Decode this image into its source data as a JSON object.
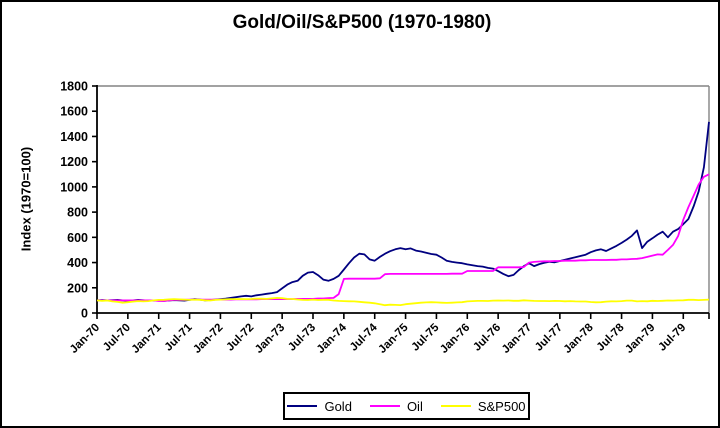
{
  "chart_data": {
    "type": "line",
    "title": "Gold/Oil/S&P500 (1970-1980)",
    "xlabel": "",
    "ylabel": "Index (1970=100)",
    "ylim": [
      0,
      1800
    ],
    "y_tick_step": 200,
    "y_ticks": [
      "0",
      "200",
      "400",
      "600",
      "800",
      "1000",
      "1200",
      "1400",
      "1600",
      "1800"
    ],
    "x_tick_labels": [
      "Jan-70",
      "Jul-70",
      "Jan-71",
      "Jul-71",
      "Jan-72",
      "Jul-72",
      "Jan-73",
      "Jul-73",
      "Jan-74",
      "Jul-74",
      "Jan-75",
      "Jul-75",
      "Jan-76",
      "Jul-76",
      "Jan-77",
      "Jul-77",
      "Jan-78",
      "Jul-78",
      "Jan-79",
      "Jul-79"
    ],
    "x_frequency": "monthly",
    "x_start": "Jan-70",
    "x_end": "Dec-79",
    "grid": "off",
    "legend_position": "bottom-center",
    "series": [
      {
        "name": "Gold",
        "color": "#000080",
        "values": [
          100,
          103,
          100,
          102,
          104,
          100,
          97,
          100,
          104,
          101,
          98,
          100,
          99,
          97,
          99,
          102,
          100,
          98,
          104,
          110,
          106,
          101,
          103,
          106,
          110,
          114,
          120,
          125,
          132,
          136,
          132,
          140,
          146,
          152,
          158,
          166,
          195,
          225,
          245,
          255,
          295,
          320,
          325,
          300,
          265,
          255,
          270,
          295,
          345,
          395,
          440,
          470,
          465,
          425,
          415,
          445,
          470,
          490,
          505,
          515,
          505,
          512,
          495,
          488,
          478,
          468,
          462,
          440,
          415,
          405,
          400,
          395,
          385,
          378,
          372,
          368,
          358,
          352,
          332,
          310,
          292,
          302,
          340,
          372,
          395,
          372,
          388,
          398,
          406,
          402,
          412,
          422,
          432,
          442,
          452,
          462,
          482,
          496,
          505,
          492,
          512,
          532,
          556,
          582,
          612,
          655,
          515,
          565,
          592,
          622,
          645,
          600,
          645,
          665,
          705,
          745,
          845,
          965,
          1155,
          1515
        ]
      },
      {
        "name": "Oil",
        "color": "#FF00FF",
        "values": [
          100,
          100,
          100,
          100,
          100,
          100,
          100,
          100,
          100,
          100,
          100,
          100,
          95,
          95,
          100,
          105,
          105,
          105,
          106,
          106,
          106,
          106,
          106,
          106,
          106,
          106,
          106,
          108,
          108,
          108,
          108,
          108,
          110,
          110,
          110,
          110,
          110,
          110,
          110,
          112,
          112,
          112,
          112,
          115,
          115,
          118,
          120,
          150,
          270,
          272,
          272,
          272,
          272,
          272,
          272,
          275,
          308,
          310,
          310,
          310,
          310,
          310,
          310,
          310,
          310,
          310,
          310,
          310,
          310,
          312,
          312,
          312,
          333,
          333,
          333,
          333,
          333,
          333,
          362,
          362,
          362,
          362,
          362,
          365,
          400,
          405,
          408,
          410,
          410,
          412,
          412,
          415,
          415,
          415,
          418,
          418,
          420,
          420,
          420,
          420,
          422,
          422,
          425,
          425,
          428,
          430,
          435,
          445,
          455,
          465,
          462,
          500,
          540,
          610,
          740,
          840,
          930,
          1020,
          1080,
          1100
        ]
      },
      {
        "name": "S&P500",
        "color": "#FFFF00",
        "values": [
          100,
          96,
          99,
          92,
          88,
          82,
          86,
          90,
          94,
          92,
          94,
          100,
          104,
          105,
          108,
          110,
          108,
          106,
          104,
          106,
          105,
          101,
          99,
          104,
          106,
          108,
          110,
          110,
          111,
          110,
          111,
          114,
          113,
          112,
          116,
          120,
          118,
          112,
          111,
          107,
          104,
          103,
          106,
          103,
          105,
          105,
          99,
          96,
          94,
          93,
          92,
          89,
          85,
          82,
          77,
          70,
          62,
          66,
          64,
          63,
          70,
          74,
          78,
          82,
          84,
          86,
          84,
          82,
          80,
          82,
          84,
          86,
          92,
          94,
          96,
          96,
          95,
          98,
          99,
          98,
          99,
          97,
          97,
          101,
          98,
          96,
          95,
          95,
          94,
          96,
          95,
          93,
          94,
          92,
          91,
          91,
          87,
          85,
          86,
          90,
          93,
          92,
          94,
          98,
          98,
          92,
          94,
          93,
          97,
          95,
          97,
          99,
          98,
          100,
          101,
          105,
          105,
          102,
          104,
          106
        ]
      }
    ]
  }
}
